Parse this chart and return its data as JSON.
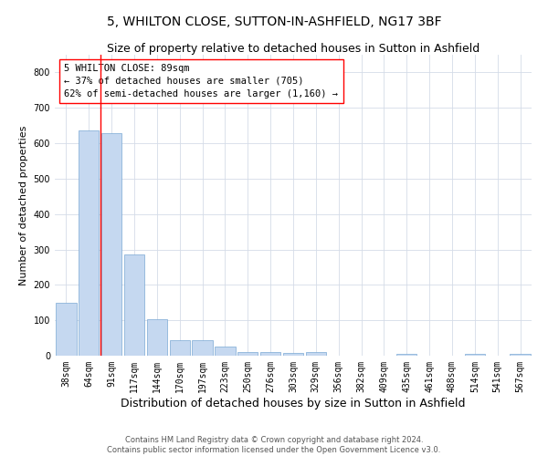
{
  "title": "5, WHILTON CLOSE, SUTTON-IN-ASHFIELD, NG17 3BF",
  "subtitle": "Size of property relative to detached houses in Sutton in Ashfield",
  "xlabel": "Distribution of detached houses by size in Sutton in Ashfield",
  "ylabel": "Number of detached properties",
  "bin_labels": [
    "38sqm",
    "64sqm",
    "91sqm",
    "117sqm",
    "144sqm",
    "170sqm",
    "197sqm",
    "223sqm",
    "250sqm",
    "276sqm",
    "303sqm",
    "329sqm",
    "356sqm",
    "382sqm",
    "409sqm",
    "435sqm",
    "461sqm",
    "488sqm",
    "514sqm",
    "541sqm",
    "567sqm"
  ],
  "bar_heights": [
    150,
    635,
    628,
    285,
    102,
    43,
    43,
    27,
    11,
    11,
    7,
    10,
    0,
    0,
    0,
    5,
    0,
    0,
    5,
    0,
    5
  ],
  "bar_color": "#c5d8f0",
  "bar_edge_color": "#7aa8d4",
  "vline_x_index": 1.5,
  "vline_color": "red",
  "annotation_text": "5 WHILTON CLOSE: 89sqm\n← 37% of detached houses are smaller (705)\n62% of semi-detached houses are larger (1,160) →",
  "annotation_box_color": "white",
  "annotation_box_edge_color": "red",
  "ylim": [
    0,
    850
  ],
  "yticks": [
    0,
    100,
    200,
    300,
    400,
    500,
    600,
    700,
    800
  ],
  "background_color": "white",
  "grid_color": "#d4dce8",
  "footer_text": "Contains HM Land Registry data © Crown copyright and database right 2024.\nContains public sector information licensed under the Open Government Licence v3.0.",
  "title_fontsize": 10,
  "subtitle_fontsize": 9,
  "xlabel_fontsize": 9,
  "ylabel_fontsize": 8,
  "tick_fontsize": 7,
  "annotation_fontsize": 7.5,
  "footer_fontsize": 6
}
